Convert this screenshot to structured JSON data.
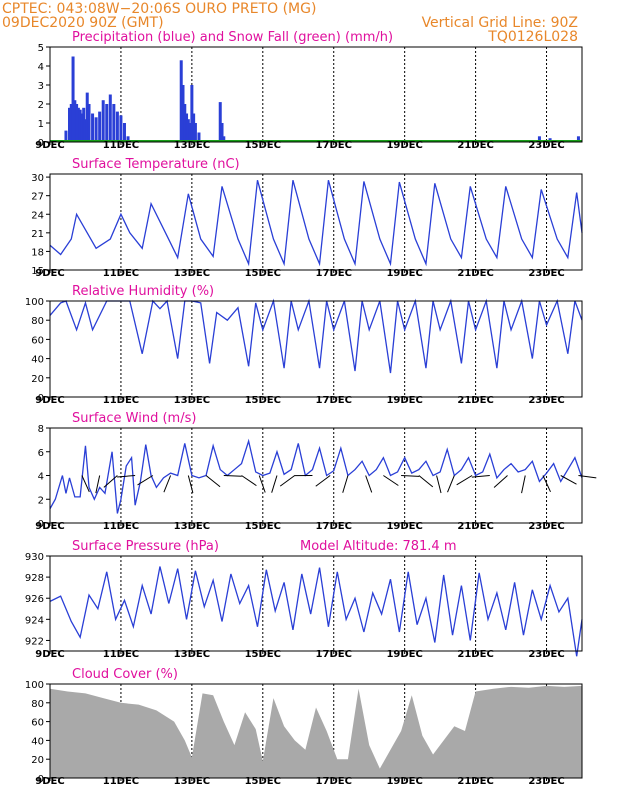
{
  "header": {
    "line1_left": "CPTEC:   043:08W−20:06S  OURO PRETO (MG)",
    "line2_left": "09DEC2020 90Z (GMT)",
    "line2_right": "Vertical Grid Line: 90Z",
    "line3_right": "TQ0126L028"
  },
  "x_axis": {
    "ticks": [
      "9DEC",
      "11DEC",
      "13DEC",
      "15DEC",
      "17DEC",
      "19DEC",
      "21DEC",
      "23DEC"
    ],
    "positions": [
      0,
      2,
      4,
      6,
      8,
      10,
      12,
      14
    ],
    "day_range": [
      0,
      15
    ]
  },
  "colors": {
    "blue": "#2a3fd6",
    "green": "#18a018",
    "gray": "#a9a9a9",
    "header": "#e8872a",
    "title": "#e0109e"
  },
  "chart_data": [
    {
      "type": "bar",
      "title": "Precipitation (blue) and Snow Fall (green) (mm/h)",
      "ylim": [
        0,
        5
      ],
      "yticks": [
        "0",
        "1",
        "2",
        "3",
        "4",
        "5"
      ],
      "series": [
        {
          "name": "Precipitation",
          "color": "#2a3fd6",
          "x": [
            0.45,
            0.55,
            0.6,
            0.65,
            0.7,
            0.75,
            0.8,
            0.85,
            0.9,
            0.95,
            1.0,
            1.05,
            1.1,
            1.2,
            1.3,
            1.4,
            1.5,
            1.6,
            1.7,
            1.8,
            1.9,
            2.0,
            2.1,
            2.2,
            3.7,
            3.75,
            3.8,
            3.85,
            3.9,
            3.95,
            4.0,
            4.05,
            4.1,
            4.2,
            4.8,
            4.85,
            4.9,
            13.8,
            14.1,
            14.9
          ],
          "values": [
            0.6,
            1.8,
            2.0,
            4.5,
            2.2,
            2.0,
            1.8,
            1.7,
            1.5,
            1.8,
            1.2,
            2.6,
            2.0,
            1.5,
            1.3,
            1.6,
            2.2,
            2.0,
            2.5,
            2.0,
            1.6,
            1.4,
            1.0,
            0.3,
            4.3,
            3.0,
            2.0,
            1.5,
            1.2,
            1.0,
            3.0,
            1.5,
            1.0,
            0.5,
            2.1,
            1.0,
            0.3,
            0.3,
            0.2,
            0.3
          ]
        },
        {
          "name": "Snow Fall",
          "color": "#18a018",
          "x": [
            0,
            15
          ],
          "values": [
            0,
            0
          ]
        }
      ]
    },
    {
      "type": "line",
      "title": "Surface Temperature (nC)",
      "ylim": [
        15,
        30.5
      ],
      "yticks": [
        "15",
        "18",
        "21",
        "24",
        "27",
        "30"
      ],
      "x": [
        0,
        0.3,
        0.6,
        0.75,
        0.95,
        1.3,
        1.7,
        2.0,
        2.25,
        2.6,
        2.85,
        3.3,
        3.6,
        3.9,
        4.25,
        4.6,
        4.85,
        5.3,
        5.6,
        5.85,
        6.3,
        6.6,
        6.85,
        7.3,
        7.6,
        7.85,
        8.3,
        8.6,
        8.85,
        9.3,
        9.6,
        9.85,
        10.3,
        10.6,
        10.85,
        11.3,
        11.6,
        11.85,
        12.3,
        12.6,
        12.85,
        13.3,
        13.6,
        13.85,
        14.3,
        14.6,
        14.85,
        15.0
      ],
      "values": [
        19,
        17.5,
        20,
        24,
        22,
        18.5,
        20,
        24,
        21,
        18.5,
        25.7,
        20.5,
        17,
        27.3,
        20,
        17.2,
        28.5,
        20,
        16,
        29.5,
        20,
        16,
        29.5,
        20,
        16,
        29.5,
        20,
        16,
        29.3,
        20,
        16,
        29.2,
        20,
        16,
        29,
        20,
        17,
        28.5,
        20,
        17,
        28.5,
        20,
        17,
        28,
        20,
        17,
        27.5,
        21
      ]
    },
    {
      "type": "line",
      "title": "Relative Humidity (%)",
      "ylim": [
        0,
        100
      ],
      "yticks": [
        "0",
        "20",
        "40",
        "60",
        "80",
        "100"
      ],
      "x": [
        0,
        0.3,
        0.45,
        0.75,
        1.0,
        1.2,
        1.6,
        1.85,
        2.0,
        2.25,
        2.6,
        2.9,
        3.1,
        3.3,
        3.6,
        3.8,
        4.0,
        4.25,
        4.5,
        4.7,
        5.0,
        5.3,
        5.6,
        5.8,
        6.0,
        6.3,
        6.6,
        6.8,
        7.0,
        7.3,
        7.6,
        7.8,
        8.0,
        8.3,
        8.6,
        8.8,
        9.0,
        9.3,
        9.6,
        9.8,
        10.0,
        10.3,
        10.6,
        10.8,
        11.0,
        11.3,
        11.6,
        11.8,
        12.0,
        12.3,
        12.6,
        12.8,
        13.0,
        13.3,
        13.6,
        13.8,
        14.0,
        14.3,
        14.6,
        14.8,
        15.0
      ],
      "values": [
        85,
        98,
        100,
        70,
        98,
        70,
        100,
        100,
        100,
        100,
        45,
        100,
        92,
        100,
        40,
        100,
        100,
        98,
        35,
        88,
        80,
        93,
        32,
        98,
        70,
        100,
        30,
        100,
        70,
        100,
        30,
        100,
        70,
        100,
        27,
        100,
        70,
        100,
        25,
        100,
        70,
        100,
        30,
        100,
        70,
        100,
        35,
        100,
        70,
        100,
        30,
        100,
        70,
        100,
        40,
        100,
        75,
        100,
        45,
        100,
        80
      ]
    },
    {
      "type": "line",
      "title": "Surface Wind (m/s)",
      "ylim": [
        0,
        8
      ],
      "yticks": [
        "0",
        "2",
        "4",
        "6",
        "8"
      ],
      "x": [
        0,
        0.15,
        0.35,
        0.45,
        0.55,
        0.7,
        0.85,
        1.0,
        1.1,
        1.25,
        1.4,
        1.55,
        1.75,
        1.9,
        2.0,
        2.15,
        2.3,
        2.4,
        2.55,
        2.7,
        2.85,
        3.0,
        3.2,
        3.4,
        3.6,
        3.8,
        4.0,
        4.2,
        4.4,
        4.6,
        4.8,
        5.0,
        5.2,
        5.4,
        5.6,
        5.8,
        6.0,
        6.2,
        6.4,
        6.6,
        6.8,
        7.0,
        7.2,
        7.4,
        7.6,
        7.8,
        8.0,
        8.2,
        8.4,
        8.6,
        8.8,
        9.0,
        9.2,
        9.4,
        9.6,
        9.8,
        10.0,
        10.2,
        10.4,
        10.6,
        10.8,
        11.0,
        11.2,
        11.4,
        11.6,
        11.8,
        12.0,
        12.2,
        12.4,
        12.6,
        12.8,
        13.0,
        13.2,
        13.4,
        13.6,
        13.8,
        14.0,
        14.2,
        14.4,
        14.6,
        14.8,
        15.0
      ],
      "values": [
        1.2,
        2.0,
        4.0,
        2.5,
        3.8,
        2.2,
        2.2,
        6.5,
        3.0,
        2.0,
        3.0,
        2.5,
        6.0,
        0.8,
        2.0,
        4.8,
        5.5,
        1.5,
        3.5,
        6.6,
        4.0,
        3.0,
        3.8,
        4.2,
        4.0,
        6.7,
        4.0,
        3.8,
        4.0,
        6.5,
        4.5,
        4.0,
        4.5,
        5.0,
        6.9,
        4.3,
        4.0,
        4.2,
        6.0,
        4.1,
        4.5,
        6.7,
        4.0,
        4.5,
        6.3,
        4.0,
        4.4,
        6.3,
        4.0,
        4.5,
        5.2,
        4.0,
        4.5,
        5.5,
        4.0,
        4.3,
        5.5,
        4.2,
        4.5,
        5.2,
        4.0,
        4.3,
        6.2,
        4.0,
        4.5,
        5.5,
        4.0,
        4.3,
        5.8,
        3.8,
        4.5,
        5.0,
        4.3,
        4.5,
        5.2,
        3.5,
        4.2,
        5.0,
        3.5,
        4.5,
        5.5,
        3.8
      ]
    },
    {
      "type": "line",
      "title": "Surface Pressure (hPa)",
      "annotation": "Model Altitude: 781.4  m",
      "ylim": [
        921,
        930
      ],
      "yticks": [
        "922",
        "924",
        "926",
        "928",
        "930"
      ],
      "x": [
        0,
        0.3,
        0.6,
        0.85,
        1.1,
        1.35,
        1.6,
        1.85,
        2.1,
        2.35,
        2.6,
        2.85,
        3.1,
        3.35,
        3.6,
        3.85,
        4.1,
        4.35,
        4.6,
        4.85,
        5.1,
        5.35,
        5.6,
        5.85,
        6.1,
        6.35,
        6.6,
        6.85,
        7.1,
        7.35,
        7.6,
        7.85,
        8.1,
        8.35,
        8.6,
        8.85,
        9.1,
        9.35,
        9.6,
        9.85,
        10.1,
        10.35,
        10.6,
        10.85,
        11.1,
        11.35,
        11.6,
        11.85,
        12.1,
        12.35,
        12.6,
        12.85,
        13.1,
        13.35,
        13.6,
        13.85,
        14.1,
        14.35,
        14.6,
        14.85,
        15.0
      ],
      "values": [
        925.7,
        926.2,
        923.8,
        922.3,
        926.3,
        925.0,
        928.5,
        924.0,
        925.8,
        923.3,
        927.2,
        924.5,
        929.0,
        925.5,
        928.8,
        924.0,
        928.6,
        925.2,
        927.7,
        923.8,
        928.3,
        925.5,
        927.2,
        923.3,
        928.7,
        924.8,
        927.5,
        923.0,
        928.3,
        924.5,
        928.9,
        923.3,
        928.5,
        924.0,
        926.0,
        922.8,
        926.5,
        924.5,
        927.8,
        922.8,
        928.5,
        923.5,
        926.0,
        921.8,
        928.2,
        922.5,
        927.2,
        922.0,
        928.4,
        924.0,
        926.5,
        923.0,
        927.5,
        922.5,
        926.8,
        924.0,
        927.2,
        924.7,
        926.0,
        920.5,
        924.0
      ]
    },
    {
      "type": "area",
      "title": "Cloud Cover (%)",
      "ylim": [
        0,
        100
      ],
      "yticks": [
        "0",
        "20",
        "40",
        "60",
        "80",
        "100"
      ],
      "x": [
        0,
        0.5,
        1.0,
        1.5,
        2.0,
        2.5,
        3.0,
        3.5,
        3.8,
        4.0,
        4.3,
        4.6,
        4.9,
        5.2,
        5.5,
        5.8,
        6.0,
        6.3,
        6.6,
        6.9,
        7.2,
        7.5,
        7.8,
        8.1,
        8.4,
        8.7,
        9.0,
        9.3,
        9.6,
        9.9,
        10.2,
        10.5,
        10.8,
        11.1,
        11.4,
        11.7,
        12.0,
        12.5,
        13.0,
        13.5,
        14.0,
        14.5,
        15.0
      ],
      "values": [
        95,
        92,
        90,
        85,
        80,
        78,
        72,
        60,
        40,
        22,
        90,
        88,
        60,
        35,
        70,
        52,
        18,
        85,
        55,
        40,
        30,
        75,
        50,
        20,
        20,
        95,
        35,
        10,
        30,
        50,
        88,
        45,
        25,
        40,
        55,
        50,
        92,
        95,
        97,
        96,
        98,
        97,
        98
      ]
    }
  ]
}
